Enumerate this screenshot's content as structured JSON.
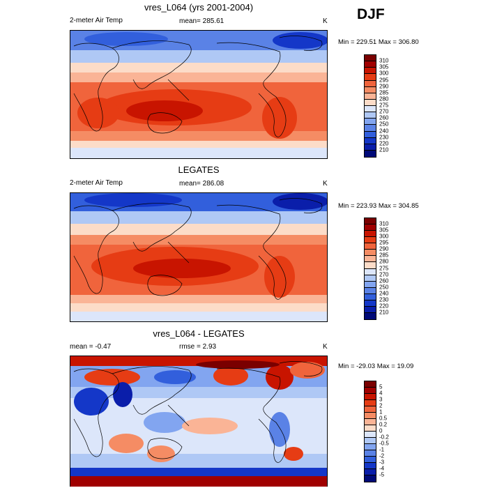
{
  "season": "DJF",
  "panels": [
    {
      "title": "vres_L064 (yrs 2001-2004)",
      "left_label": "2-meter Air Temp",
      "center_label": "mean= 285.61",
      "units": "K",
      "minmax": "Min = 229.51 Max = 306.80",
      "colorbar_labels": [
        "310",
        "305",
        "300",
        "295",
        "290",
        "285",
        "280",
        "275",
        "270",
        "260",
        "250",
        "240",
        "230",
        "220",
        "210"
      ]
    },
    {
      "title": "LEGATES",
      "left_label": "2-meter Air Temp",
      "center_label": "mean= 286.08",
      "units": "K",
      "minmax": "Min = 223.93 Max = 304.85",
      "colorbar_labels": [
        "310",
        "305",
        "300",
        "295",
        "290",
        "285",
        "280",
        "275",
        "270",
        "260",
        "250",
        "240",
        "230",
        "220",
        "210"
      ]
    },
    {
      "title": "vres_L064 - LEGATES",
      "left_label": "mean =  -0.47",
      "center_label": "rmse =   2.93",
      "units": "K",
      "minmax": "Min = -29.03 Max =  19.09",
      "colorbar_labels": [
        "5",
        "4",
        "3",
        "2",
        "1",
        "0.5",
        "0.2",
        "0",
        "-0.2",
        "-0.5",
        "-1",
        "-2",
        "-3",
        "-4",
        "-5"
      ]
    }
  ],
  "colors": {
    "temp_scale": [
      "#7a0000",
      "#a00000",
      "#c81400",
      "#e63c14",
      "#f0643c",
      "#f58c64",
      "#fab496",
      "#fcdcc8",
      "#dce6fa",
      "#afc8f5",
      "#82a5f0",
      "#5a82e6",
      "#325fdc",
      "#1437c8",
      "#0a1eaa",
      "#000a78"
    ],
    "diff_scale": [
      "#7a0000",
      "#a00000",
      "#c81400",
      "#e63c14",
      "#f0643c",
      "#f58c64",
      "#fab496",
      "#fcdcc8",
      "#dce6fa",
      "#afc8f5",
      "#82a5f0",
      "#5a82e6",
      "#325fdc",
      "#1437c8",
      "#0a1eaa",
      "#000a78"
    ]
  }
}
